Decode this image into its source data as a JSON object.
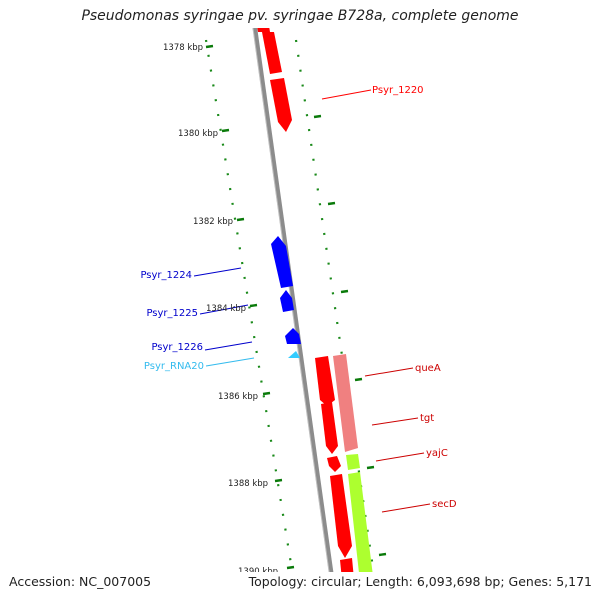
{
  "title": "Pseudomonas syringae pv. syringae B728a, complete genome",
  "footer": {
    "accession": "Accession: NC_007005",
    "stats": "Topology: circular; Length: 6,093,698 bp; Genes: 5,171"
  },
  "colors": {
    "backbone": "#8c8c8c",
    "forward_cds": "#ff0000",
    "forward_cds_light": "#f08080",
    "reverse_cds": "#0000ff",
    "rna": "#33ccff",
    "green_feature": "#adff2f",
    "tick": "#0a7a0a"
  },
  "ticks": [
    {
      "label": "1378 kbp"
    },
    {
      "label": "1380 kbp"
    },
    {
      "label": "1382 kbp"
    },
    {
      "label": "1384 kbp"
    },
    {
      "label": "1386 kbp"
    },
    {
      "label": "1388 kbp"
    },
    {
      "label": "1390 kbp"
    }
  ],
  "genes": [
    {
      "name": "Psyr_1220",
      "color": "#ff0000"
    },
    {
      "name": "Psyr_1224",
      "color": "#0000cc"
    },
    {
      "name": "Psyr_1225",
      "color": "#0000cc"
    },
    {
      "name": "Psyr_1226",
      "color": "#0000cc"
    },
    {
      "name": "Psyr_RNA20",
      "color": "#33bbee"
    },
    {
      "name": "queA",
      "color": "#cc0000"
    },
    {
      "name": "tgt",
      "color": "#cc0000"
    },
    {
      "name": "yajC",
      "color": "#cc0000"
    },
    {
      "name": "secD",
      "color": "#cc0000"
    }
  ]
}
